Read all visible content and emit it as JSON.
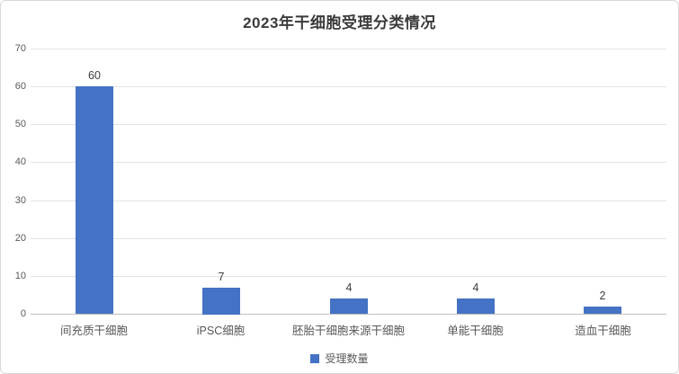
{
  "chart_data": {
    "type": "bar",
    "title": "2023年干细胞受理分类情况",
    "categories": [
      "间充质干细胞",
      "iPSC细胞",
      "胚胎干细胞来源干细胞",
      "单能干细胞",
      "造血干细胞"
    ],
    "series": [
      {
        "name": "受理数量",
        "values": [
          60,
          7,
          4,
          4,
          2
        ]
      }
    ],
    "ylim": [
      0,
      70
    ],
    "yticks": [
      0,
      10,
      20,
      30,
      40,
      50,
      60,
      70
    ],
    "grid": true,
    "legend_position": "bottom",
    "data_labels_shown": true,
    "bar_color": "#4472C4"
  },
  "legend": {
    "label": "受理数量",
    "marker_color": "#4472C4"
  },
  "colors": {
    "bar": "#4472C4",
    "title_text": "#3b3b3b",
    "axis_text": "#595959",
    "data_label_text": "#404040",
    "gridline": "#e3e3e3",
    "axis_line": "#c0c0c0",
    "card_border": "#d9d9d9",
    "background": "#ffffff"
  }
}
